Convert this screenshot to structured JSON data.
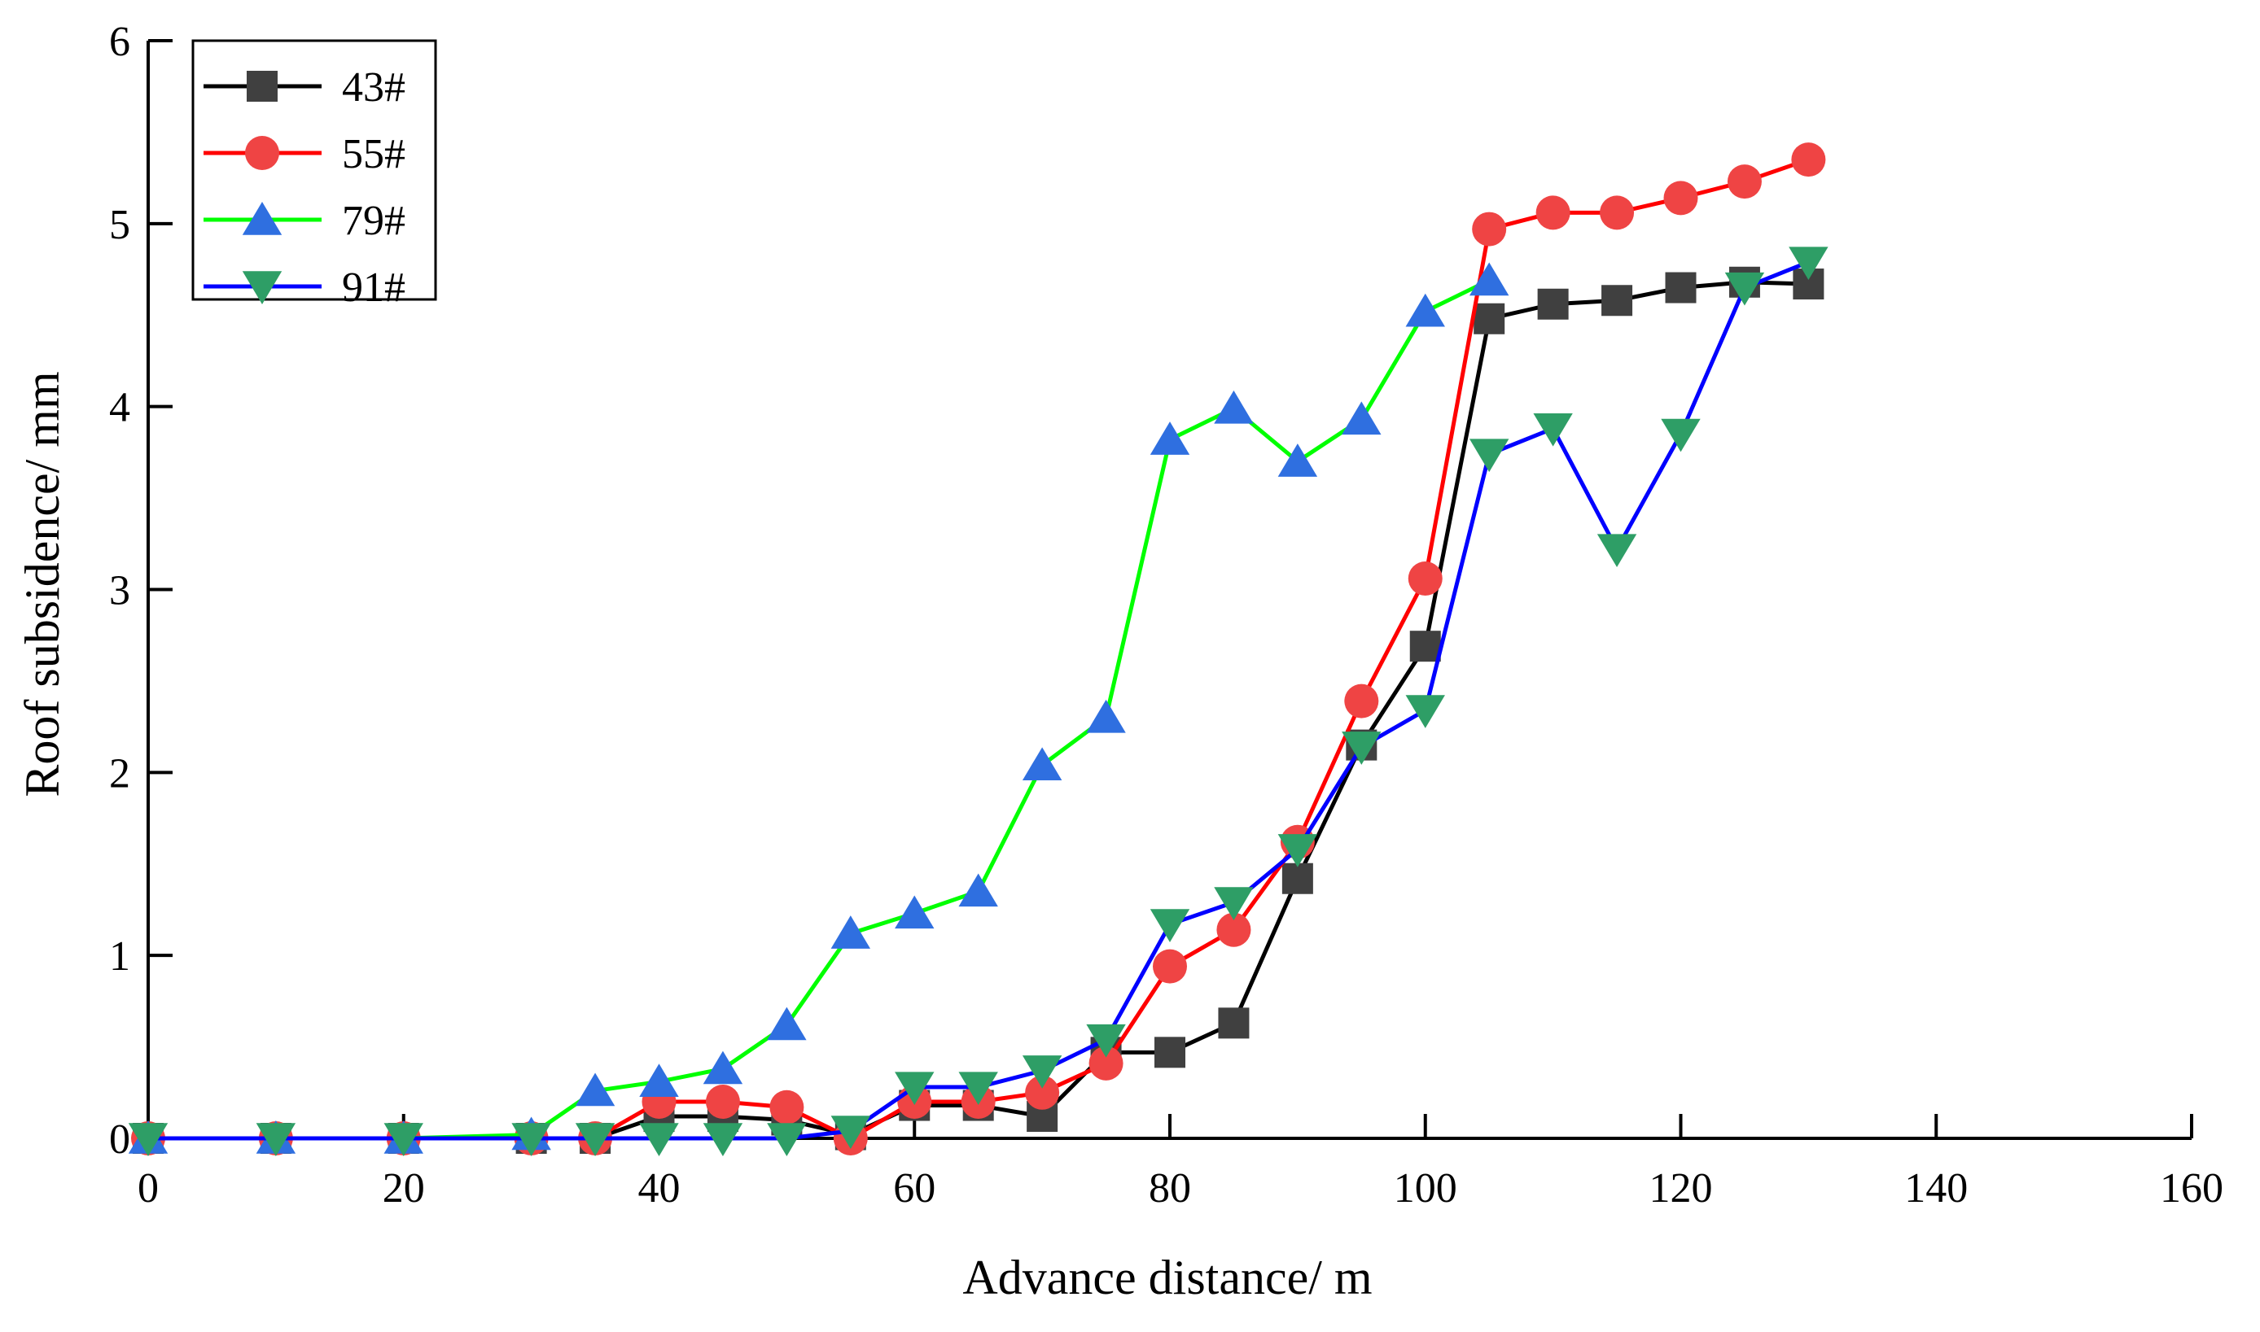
{
  "chart_data": {
    "type": "line",
    "title": "",
    "xlabel": "Advance distance/ m",
    "ylabel": "Roof subsidence/ mm",
    "xlim": [
      0,
      160
    ],
    "ylim": [
      0,
      6
    ],
    "xticks": [
      0,
      20,
      40,
      60,
      80,
      100,
      120,
      140,
      160
    ],
    "yticks": [
      0,
      1,
      2,
      3,
      4,
      5,
      6
    ],
    "legend_position": "top-left",
    "x": [
      0,
      10,
      20,
      30,
      35,
      40,
      45,
      50,
      55,
      60,
      65,
      70,
      75,
      80,
      85,
      90,
      95,
      100,
      105,
      110,
      115,
      120,
      125,
      130
    ],
    "series": [
      {
        "name": "43#",
        "line_color": "#000000",
        "marker_color": "#404040",
        "marker": "square",
        "values": [
          0,
          0,
          0,
          0,
          0,
          0.12,
          0.12,
          0.1,
          0.02,
          0.18,
          0.18,
          0.12,
          0.47,
          0.47,
          0.63,
          1.42,
          2.15,
          2.69,
          4.48,
          4.56,
          4.58,
          4.65,
          4.68,
          4.67
        ]
      },
      {
        "name": "55#",
        "line_color": "#ff0000",
        "marker_color": "#ef4444",
        "marker": "circle",
        "values": [
          0,
          0,
          0,
          0,
          0,
          0.2,
          0.2,
          0.17,
          0,
          0.2,
          0.2,
          0.25,
          0.41,
          0.94,
          1.14,
          1.62,
          2.39,
          3.06,
          4.97,
          5.06,
          5.06,
          5.14,
          5.23,
          5.35
        ]
      },
      {
        "name": "79#",
        "line_color": "#00ff00",
        "marker_color": "#2f6fe0",
        "marker": "triangle-up",
        "values": [
          0,
          0,
          0,
          0.02,
          0.26,
          0.31,
          0.38,
          0.62,
          1.12,
          1.23,
          1.35,
          2.04,
          2.3,
          3.82,
          3.99,
          3.7,
          3.93,
          4.52,
          4.69,
          null,
          null,
          null,
          null,
          null
        ]
      },
      {
        "name": "91#",
        "line_color": "#0000ff",
        "marker_color": "#2e9e66",
        "marker": "triangle-down",
        "values": [
          0,
          0,
          0,
          0,
          0,
          0,
          0,
          0,
          0.04,
          0.28,
          0.28,
          0.37,
          0.54,
          1.17,
          1.29,
          1.58,
          2.14,
          2.34,
          3.74,
          3.88,
          3.22,
          3.85,
          4.65,
          4.79
        ]
      }
    ]
  }
}
